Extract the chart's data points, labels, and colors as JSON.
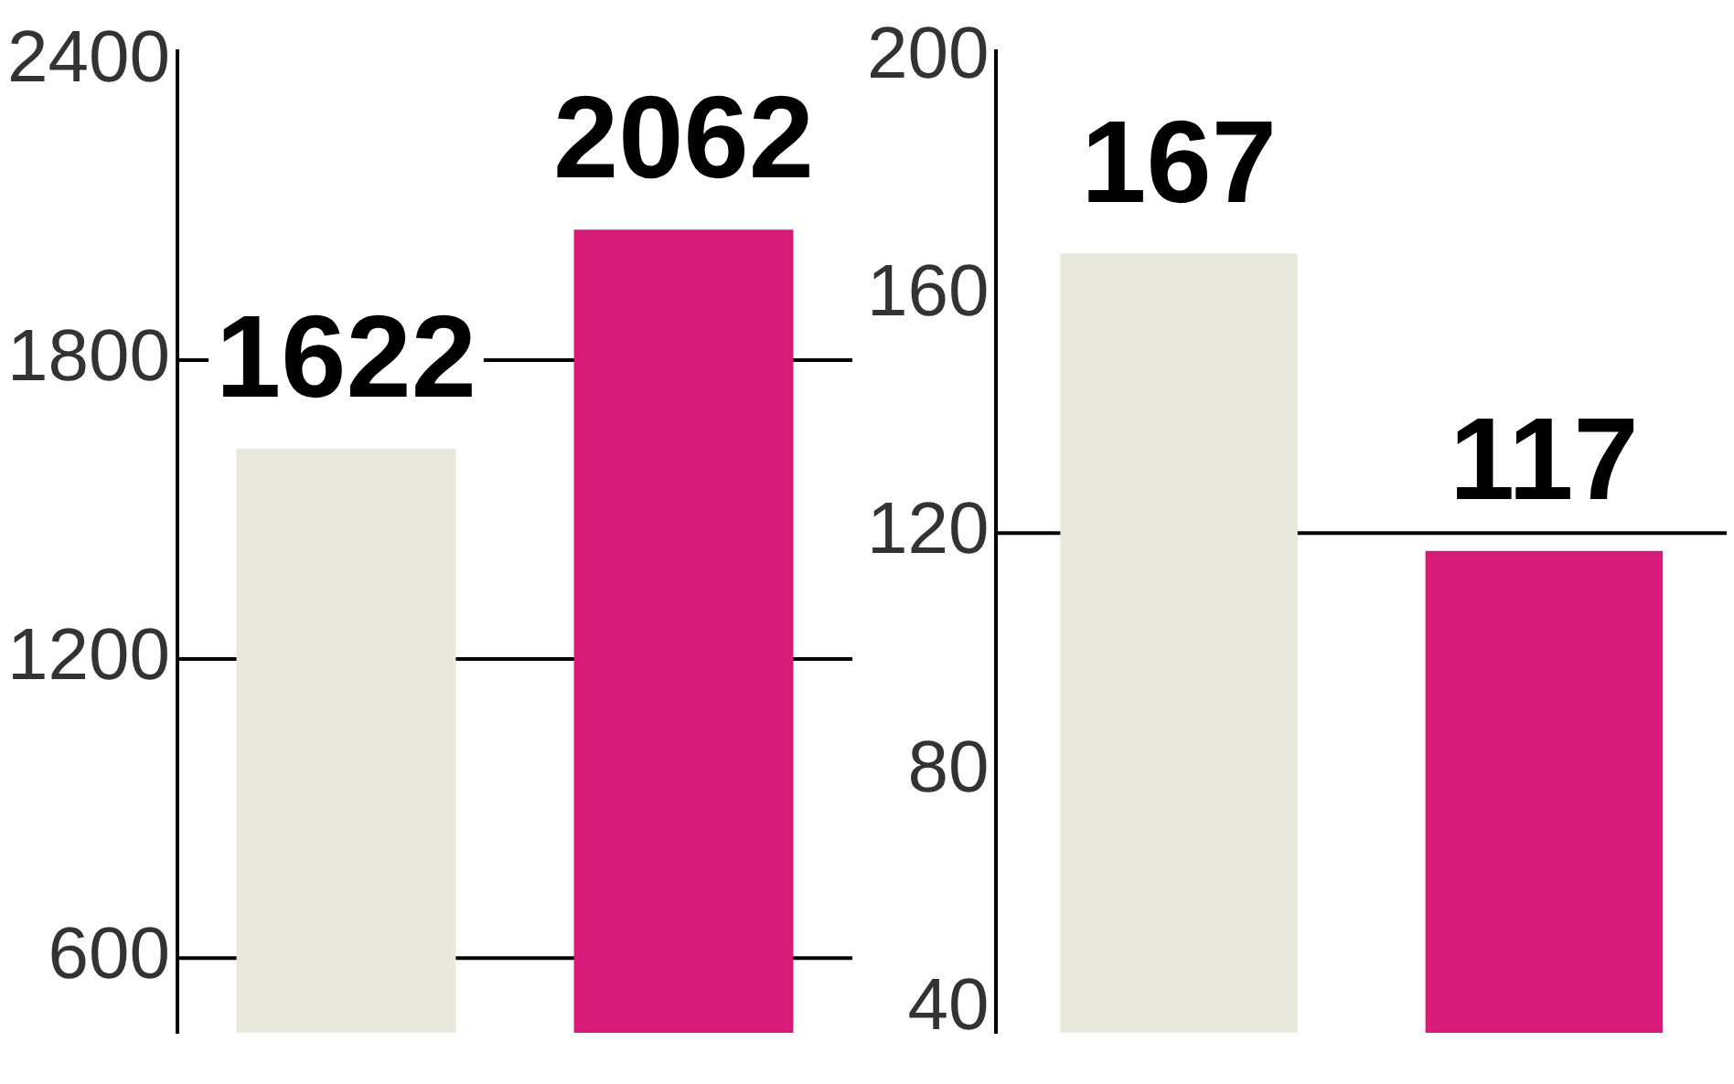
{
  "chart_data": [
    {
      "type": "bar",
      "categories": [
        null,
        null
      ],
      "values": [
        1622,
        2062
      ],
      "colors": [
        "#e8e8dc",
        "#d81b78"
      ],
      "ylim": [
        450,
        2420
      ],
      "yticks": [
        600,
        1200,
        1800,
        2400
      ],
      "tick_labels": "y",
      "data_labels": true,
      "ref_lines": [
        {
          "axis": "y",
          "value": 600
        },
        {
          "axis": "y",
          "value": 1200
        },
        {
          "axis": "y",
          "value": 1800
        }
      ]
    },
    {
      "type": "bar",
      "categories": [
        null,
        null
      ],
      "values": [
        167,
        117
      ],
      "colors": [
        "#e8e8dc",
        "#d81b78"
      ],
      "ylim": [
        36,
        201
      ],
      "yticks": [
        40,
        80,
        120,
        160,
        200
      ],
      "tick_labels": "y",
      "data_labels": true,
      "ref_lines": [
        {
          "axis": "y",
          "value": 120
        }
      ]
    }
  ]
}
